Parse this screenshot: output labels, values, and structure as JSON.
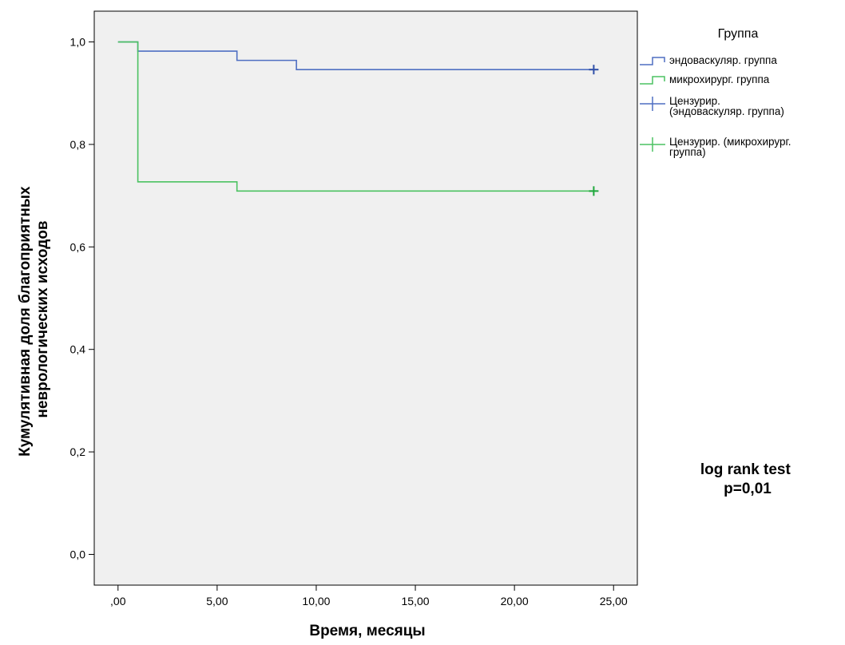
{
  "chart_data": {
    "type": "line",
    "subtype": "kaplan-meier-step",
    "xlabel": "Время, месяцы",
    "ylabel": [
      "Кумулятивная доля благоприятных",
      "неврологических исходов"
    ],
    "xlim": [
      -1.2,
      26.2
    ],
    "ylim": [
      -0.06,
      1.06
    ],
    "x_ticks": [
      0,
      5,
      10,
      15,
      20,
      25
    ],
    "x_tick_labels": [
      ",00",
      "5,00",
      "10,00",
      "15,00",
      "20,00",
      "25,00"
    ],
    "y_ticks": [
      0,
      0.2,
      0.4,
      0.6,
      0.8,
      1.0
    ],
    "y_tick_labels": [
      "0,0",
      "0,2",
      "0,4",
      "0,6",
      "0,8",
      "1,0"
    ],
    "grid": false,
    "legend_title": "Группа",
    "legend_position": "right-top",
    "legend": [
      {
        "label": [
          "эндоваскуляр. группа"
        ],
        "color": "#4f6fc2",
        "marker": "step"
      },
      {
        "label": [
          "микрохирург. группа"
        ],
        "color": "#4cc262",
        "marker": "step"
      },
      {
        "label": [
          "Цензурир.",
          "(эндоваскуляр. группа)"
        ],
        "color": "#4f6fc2",
        "marker": "plus"
      },
      {
        "label": [
          "Цензурир. (микрохирург.",
          "группа)"
        ],
        "color": "#4cc262",
        "marker": "plus"
      }
    ],
    "series": [
      {
        "name": "эндоваскуляр. группа",
        "color": "#4f6fc2",
        "censor_color": "#2f4fa8",
        "steps": [
          [
            0,
            1.0
          ],
          [
            1,
            0.982
          ],
          [
            6,
            0.964
          ],
          [
            9,
            0.946
          ],
          [
            24,
            0.946
          ]
        ],
        "censored": [
          [
            24,
            0.946
          ]
        ]
      },
      {
        "name": "микрохирург. группа",
        "color": "#4cc262",
        "censor_color": "#1fa83c",
        "steps": [
          [
            0,
            1.0
          ],
          [
            1,
            0.727
          ],
          [
            6,
            0.709
          ],
          [
            24,
            0.709
          ]
        ],
        "censored": [
          [
            24,
            0.709
          ]
        ]
      }
    ],
    "annotation": [
      "log rank test",
      "p=0,01"
    ]
  },
  "colors": {
    "plot_background": "#f0f0f0",
    "frame": "#000000"
  }
}
